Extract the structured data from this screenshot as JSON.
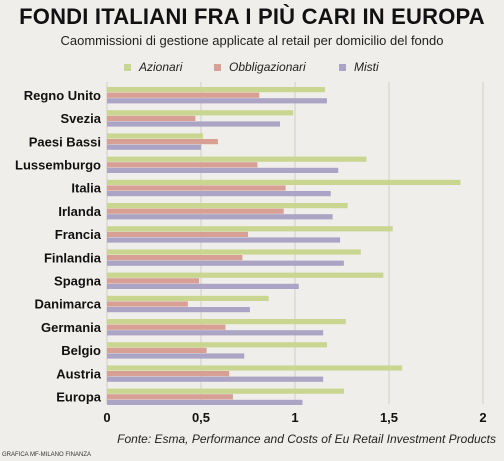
{
  "title": "FONDI ITALIANI FRA I PIÙ CARI IN EUROPA",
  "subtitle": "Caommissioni di gestione applicate al retail per domicilio del fondo",
  "source": "Fonte: Esma, Performance and Costs of Eu Retail Investment Products",
  "credit": "GRAFICA MF-MILANO FINANZA",
  "colors": {
    "azionari": "#c8d690",
    "obbligazionari": "#d8a094",
    "misti": "#aba4c4",
    "gridline": "#cfcdc6"
  },
  "chart_data": {
    "type": "bar",
    "orientation": "horizontal",
    "categories": [
      "Regno Unito",
      "Svezia",
      "Paesi Bassi",
      "Lussemburgo",
      "Italia",
      "Irlanda",
      "Francia",
      "Finlandia",
      "Spagna",
      "Danimarca",
      "Germania",
      "Belgio",
      "Austria",
      "Europa"
    ],
    "series": [
      {
        "name": "Azionari",
        "values": [
          1.16,
          0.99,
          0.51,
          1.38,
          1.88,
          1.28,
          1.52,
          1.35,
          1.47,
          0.86,
          1.27,
          1.17,
          1.57,
          1.26
        ]
      },
      {
        "name": "Obbligazionari",
        "values": [
          0.81,
          0.47,
          0.59,
          0.8,
          0.95,
          0.94,
          0.75,
          0.72,
          0.49,
          0.43,
          0.63,
          0.53,
          0.65,
          0.67
        ]
      },
      {
        "name": "Misti",
        "values": [
          1.17,
          0.92,
          0.5,
          1.23,
          1.19,
          1.2,
          1.24,
          1.26,
          1.02,
          0.76,
          1.15,
          0.73,
          1.15,
          1.04
        ]
      }
    ],
    "xlim": [
      0,
      2
    ],
    "xticks": [
      0,
      0.5,
      1,
      1.5,
      2
    ],
    "xtick_labels": [
      "0",
      "0,5",
      "1",
      "1,5",
      "2"
    ],
    "grid": true,
    "legend_position": "top"
  }
}
